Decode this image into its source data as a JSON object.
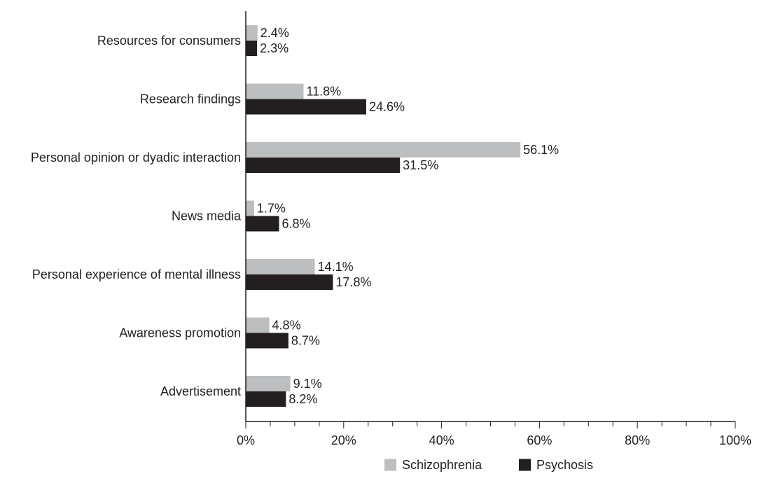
{
  "chart_data": {
    "type": "bar",
    "orientation": "horizontal",
    "categories": [
      "Resources for consumers",
      "Research findings",
      "Personal opinion or dyadic interaction",
      "News media",
      "Personal experience of mental illness",
      "Awareness promotion",
      "Advertisement"
    ],
    "series": [
      {
        "name": "Schizophrenia",
        "color": "#bcbec0",
        "values": [
          2.4,
          11.8,
          56.1,
          1.7,
          14.1,
          4.8,
          9.1
        ],
        "labels": [
          "2.4%",
          "11.8%",
          "56.1%",
          "1.7%",
          "14.1%",
          "4.8%",
          "9.1%"
        ]
      },
      {
        "name": "Psychosis",
        "color": "#231f20",
        "values": [
          2.3,
          24.6,
          31.5,
          6.8,
          17.8,
          8.7,
          8.2
        ],
        "labels": [
          "2.3%",
          "24.6%",
          "31.5%",
          "6.8%",
          "17.8%",
          "8.7%",
          "8.2%"
        ]
      }
    ],
    "xlim": [
      0,
      100
    ],
    "x_ticks": [
      0,
      20,
      40,
      60,
      80,
      100
    ],
    "x_tick_labels": [
      "0%",
      "20%",
      "40%",
      "60%",
      "80%",
      "100%"
    ],
    "grid": false,
    "legend_position": "bottom"
  }
}
